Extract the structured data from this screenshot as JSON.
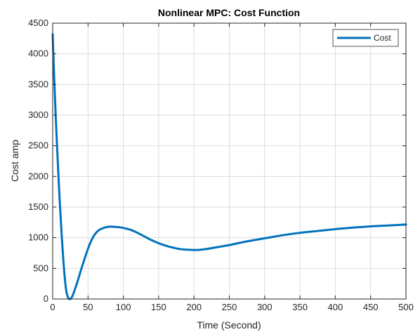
{
  "chart_data": {
    "type": "line",
    "title": "Nonlinear MPC: Cost Function",
    "xlabel": "Time  (Second)",
    "ylabel": "Cost amp",
    "xlim": [
      0,
      500
    ],
    "ylim": [
      0,
      4500
    ],
    "xticks": [
      0,
      50,
      100,
      150,
      200,
      250,
      300,
      350,
      400,
      450,
      500
    ],
    "yticks": [
      0,
      500,
      1000,
      1500,
      2000,
      2500,
      3000,
      3500,
      4000,
      4500
    ],
    "grid": true,
    "legend_position": "top-right",
    "series": [
      {
        "name": "Cost",
        "color": "#0072BD",
        "x": [
          0,
          2,
          5,
          8,
          10,
          13,
          16,
          19,
          22,
          25,
          28,
          30,
          35,
          40,
          45,
          50,
          55,
          60,
          65,
          70,
          75,
          80,
          85,
          90,
          95,
          100,
          105,
          110,
          120,
          130,
          140,
          150,
          160,
          170,
          180,
          190,
          200,
          210,
          220,
          230,
          240,
          250,
          275,
          300,
          325,
          350,
          375,
          400,
          425,
          450,
          475,
          500
        ],
        "y": [
          4320,
          3650,
          2800,
          2050,
          1600,
          1000,
          500,
          150,
          20,
          0,
          50,
          110,
          280,
          470,
          650,
          820,
          960,
          1060,
          1120,
          1150,
          1170,
          1180,
          1180,
          1175,
          1170,
          1160,
          1145,
          1130,
          1080,
          1020,
          960,
          910,
          870,
          840,
          815,
          805,
          800,
          805,
          820,
          840,
          860,
          880,
          940,
          990,
          1040,
          1080,
          1110,
          1140,
          1165,
          1185,
          1200,
          1215
        ]
      }
    ]
  }
}
